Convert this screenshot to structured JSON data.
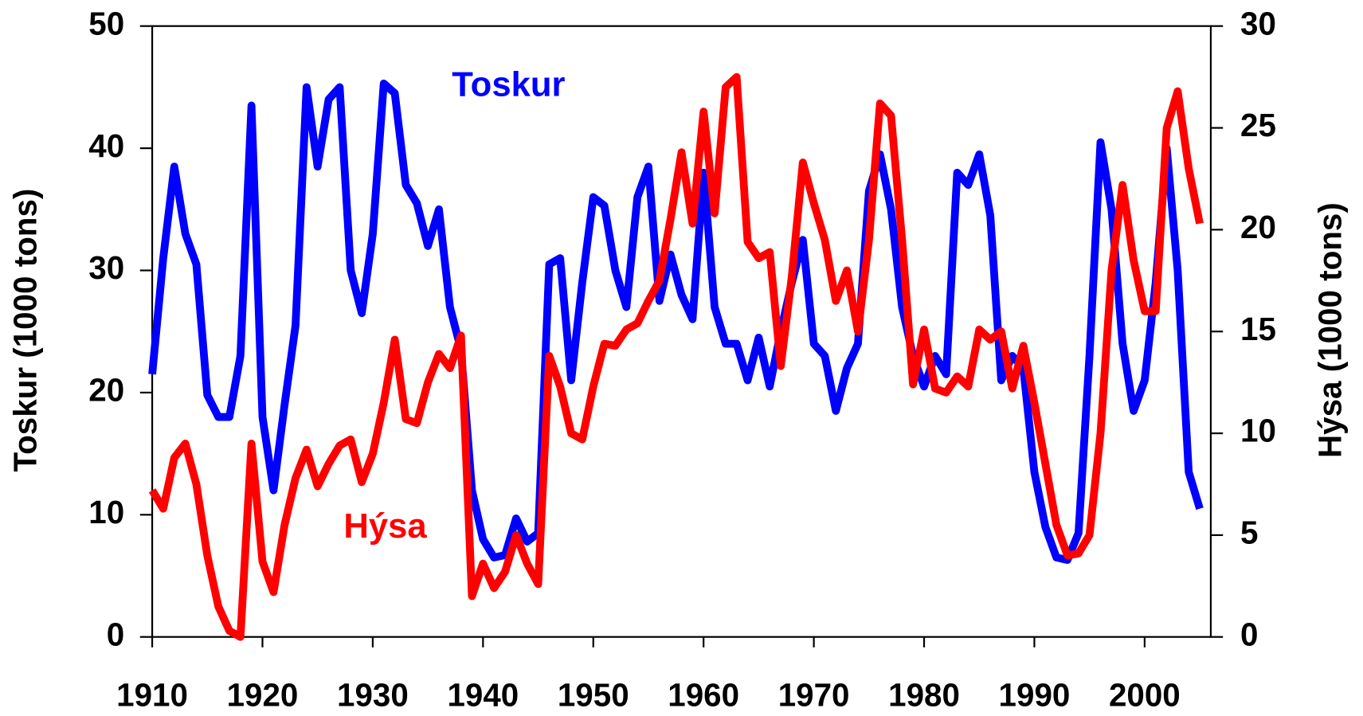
{
  "chart_data": {
    "type": "line",
    "x": [
      1910,
      1911,
      1912,
      1913,
      1914,
      1915,
      1916,
      1917,
      1918,
      1919,
      1920,
      1921,
      1922,
      1923,
      1924,
      1925,
      1926,
      1927,
      1928,
      1929,
      1930,
      1931,
      1932,
      1933,
      1934,
      1935,
      1936,
      1937,
      1938,
      1939,
      1940,
      1941,
      1942,
      1943,
      1944,
      1945,
      1946,
      1947,
      1948,
      1949,
      1950,
      1951,
      1952,
      1953,
      1954,
      1955,
      1956,
      1957,
      1958,
      1959,
      1960,
      1961,
      1962,
      1963,
      1964,
      1965,
      1966,
      1967,
      1968,
      1969,
      1970,
      1971,
      1972,
      1973,
      1974,
      1975,
      1976,
      1977,
      1978,
      1979,
      1980,
      1981,
      1982,
      1983,
      1984,
      1985,
      1986,
      1987,
      1988,
      1989,
      1990,
      1991,
      1992,
      1993,
      1994,
      1995,
      1996,
      1997,
      1998,
      1999,
      2000,
      2001,
      2002,
      2003,
      2004,
      2005
    ],
    "series": [
      {
        "name": "Toskur",
        "color": "#0000ff",
        "values": [
          21.5,
          31,
          38.5,
          33,
          30.5,
          19.8,
          18,
          18,
          23,
          43.5,
          18,
          12,
          19,
          25.5,
          45,
          38.5,
          44,
          45,
          30,
          26.5,
          33,
          45.3,
          44.5,
          37,
          35.5,
          32,
          35,
          27,
          23.5,
          12,
          8,
          6.5,
          6.7,
          9.7,
          7.8,
          8.5,
          30.5,
          31,
          21,
          29,
          36,
          35.3,
          30,
          27,
          36,
          38.5,
          27.5,
          31.3,
          28,
          26,
          38,
          27,
          24,
          24,
          21,
          24.5,
          20.5,
          25,
          29,
          32.5,
          24,
          23,
          18.5,
          22,
          24,
          36.5,
          39.5,
          35,
          27,
          23,
          20.5,
          23,
          21.5,
          38,
          37,
          39.5,
          34.5,
          21,
          23,
          22,
          13.5,
          9,
          6.5,
          6.3,
          8.5,
          23,
          40.5,
          35,
          24,
          18.5,
          21,
          29,
          40,
          30,
          13.5,
          10.5
        ]
      },
      {
        "name": "Hýsa",
        "color": "#ff0000",
        "axis": "y2",
        "values": [
          7.2,
          6.3,
          8.8,
          9.5,
          7.5,
          4,
          1.5,
          0.3,
          0,
          9.5,
          3.7,
          2.2,
          5.5,
          7.8,
          9.2,
          7.4,
          8.5,
          9.4,
          9.7,
          7.6,
          9,
          11.5,
          14.6,
          10.7,
          10.5,
          12.5,
          13.9,
          13.2,
          14.8,
          2,
          3.6,
          2.4,
          3.2,
          5,
          3.6,
          2.6,
          13.8,
          12.3,
          10,
          9.7,
          12.3,
          14.4,
          14.3,
          15.1,
          15.4,
          16.5,
          17.5,
          20.5,
          23.8,
          20.3,
          25.8,
          20.8,
          27,
          27.5,
          19.4,
          18.6,
          18.9,
          13.3,
          17.7,
          23.3,
          21.3,
          19.5,
          16.5,
          18,
          15,
          19.5,
          26.2,
          25.6,
          19.5,
          12.4,
          15.1,
          12.2,
          12,
          12.8,
          12.3,
          15.1,
          14.6,
          15,
          12.2,
          14.3,
          11.5,
          8.5,
          5.5,
          4,
          4.1,
          5,
          10,
          18,
          22.2,
          18.5,
          16,
          16,
          25,
          26.8,
          23,
          20.3
        ]
      }
    ],
    "ylabel": "Toskur (1000 tons)",
    "y2label": "Hýsa (1000 tons)",
    "xlim": [
      1910,
      2006
    ],
    "xticks": [
      1910,
      1920,
      1930,
      1940,
      1950,
      1960,
      1970,
      1980,
      1990,
      2000
    ],
    "ylim": [
      0,
      50
    ],
    "yticks": [
      0,
      10,
      20,
      30,
      40,
      50
    ],
    "y2lim": [
      0,
      30
    ],
    "y2ticks": [
      0,
      5,
      10,
      15,
      20,
      25,
      30
    ],
    "annotations": [
      {
        "text": "Toskur",
        "color": "#0000ff"
      },
      {
        "text": "Hýsa",
        "color": "#ff0000"
      }
    ],
    "grid": false
  }
}
